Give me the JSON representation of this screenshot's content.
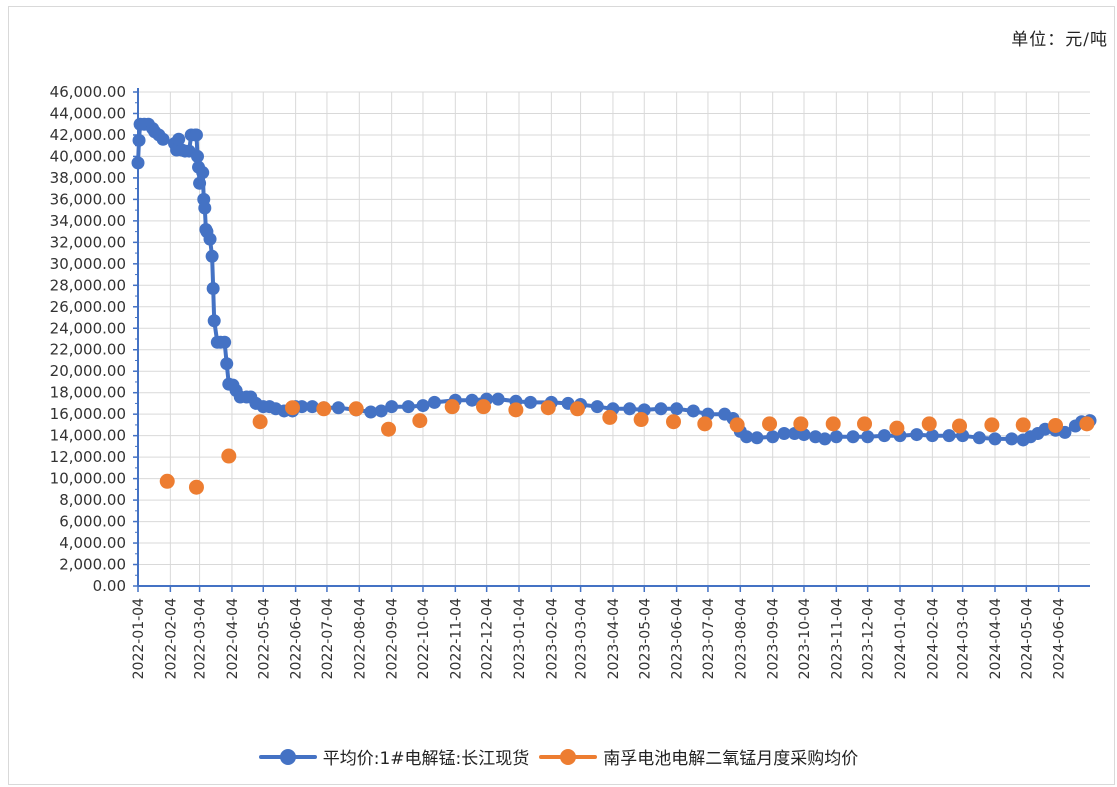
{
  "unit_label": "单位：元/吨",
  "colors": {
    "series1": "#4472c4",
    "series2": "#ed7d31",
    "grid": "#d9d9d9",
    "axis": "#4472c4"
  },
  "legend": [
    {
      "label": "平均价:1#电解锰:长江现货",
      "color": "#4472c4"
    },
    {
      "label": "南孚电池电解二氧锰月度采购均价",
      "color": "#ed7d31"
    }
  ],
  "chart_data": {
    "type": "line",
    "y_tick_labels": [
      "0.00",
      "2,000.00",
      "4,000.00",
      "6,000.00",
      "8,000.00",
      "10,000.00",
      "12,000.00",
      "14,000.00",
      "16,000.00",
      "18,000.00",
      "20,000.00",
      "22,000.00",
      "24,000.00",
      "26,000.00",
      "28,000.00",
      "30,000.00",
      "32,000.00",
      "34,000.00",
      "36,000.00",
      "38,000.00",
      "40,000.00",
      "42,000.00",
      "44,000.00",
      "46,000.00"
    ],
    "x_tick_labels": [
      "2022-01-04",
      "2022-02-04",
      "2022-03-04",
      "2022-04-04",
      "2022-05-04",
      "2022-06-04",
      "2022-07-04",
      "2022-08-04",
      "2022-09-04",
      "2022-10-04",
      "2022-11-04",
      "2022-12-04",
      "2023-01-04",
      "2023-02-04",
      "2023-03-04",
      "2023-04-04",
      "2023-05-04",
      "2023-06-04",
      "2023-07-04",
      "2023-08-04",
      "2023-09-04",
      "2023-10-04",
      "2023-11-04",
      "2023-12-04",
      "2024-01-04",
      "2024-02-04",
      "2024-03-04",
      "2024-04-04",
      "2024-05-04",
      "2024-06-04"
    ],
    "ylim": [
      0,
      46000
    ],
    "xlim": [
      "2022-01-04",
      "2024-07-04"
    ],
    "grid": true,
    "legend_position": "bottom",
    "series": [
      {
        "name": "平均价:1#电解锰:长江现货",
        "type": "line",
        "points": [
          [
            "2022-01-04",
            39400
          ],
          [
            "2022-01-05",
            41500
          ],
          [
            "2022-01-06",
            43000
          ],
          [
            "2022-01-10",
            43000
          ],
          [
            "2022-01-14",
            43000
          ],
          [
            "2022-01-18",
            42600
          ],
          [
            "2022-01-20",
            42300
          ],
          [
            "2022-01-24",
            42000
          ],
          [
            "2022-01-28",
            41600
          ],
          [
            "2022-02-08",
            41200
          ],
          [
            "2022-02-10",
            40600
          ],
          [
            "2022-02-12",
            41600
          ],
          [
            "2022-02-15",
            40600
          ],
          [
            "2022-02-18",
            40500
          ],
          [
            "2022-02-22",
            40500
          ],
          [
            "2022-02-24",
            42000
          ],
          [
            "2022-02-28",
            42000
          ],
          [
            "2022-03-01",
            42000
          ],
          [
            "2022-03-02",
            40000
          ],
          [
            "2022-03-03",
            39000
          ],
          [
            "2022-03-04",
            37500
          ],
          [
            "2022-03-07",
            38500
          ],
          [
            "2022-03-08",
            36000
          ],
          [
            "2022-03-09",
            35200
          ],
          [
            "2022-03-10",
            33200
          ],
          [
            "2022-03-11",
            33000
          ],
          [
            "2022-03-14",
            32300
          ],
          [
            "2022-03-16",
            30700
          ],
          [
            "2022-03-17",
            27700
          ],
          [
            "2022-03-18",
            24700
          ],
          [
            "2022-03-21",
            22700
          ],
          [
            "2022-03-24",
            22700
          ],
          [
            "2022-03-28",
            22700
          ],
          [
            "2022-03-30",
            20700
          ],
          [
            "2022-04-01",
            18800
          ],
          [
            "2022-04-05",
            18700
          ],
          [
            "2022-04-08",
            18200
          ],
          [
            "2022-04-12",
            17600
          ],
          [
            "2022-04-18",
            17600
          ],
          [
            "2022-04-22",
            17600
          ],
          [
            "2022-04-27",
            17000
          ],
          [
            "2022-05-04",
            16700
          ],
          [
            "2022-05-10",
            16700
          ],
          [
            "2022-05-16",
            16500
          ],
          [
            "2022-05-24",
            16300
          ],
          [
            "2022-06-01",
            16300
          ],
          [
            "2022-06-04",
            16700
          ],
          [
            "2022-06-10",
            16700
          ],
          [
            "2022-06-20",
            16700
          ],
          [
            "2022-07-01",
            16600
          ],
          [
            "2022-07-15",
            16600
          ],
          [
            "2022-08-01",
            16400
          ],
          [
            "2022-08-15",
            16200
          ],
          [
            "2022-08-25",
            16300
          ],
          [
            "2022-09-04",
            16700
          ],
          [
            "2022-09-20",
            16700
          ],
          [
            "2022-10-04",
            16800
          ],
          [
            "2022-10-15",
            17100
          ],
          [
            "2022-11-04",
            17300
          ],
          [
            "2022-11-20",
            17300
          ],
          [
            "2022-12-04",
            17400
          ],
          [
            "2022-12-15",
            17400
          ],
          [
            "2023-01-01",
            17200
          ],
          [
            "2023-01-15",
            17100
          ],
          [
            "2023-02-04",
            17100
          ],
          [
            "2023-02-20",
            17000
          ],
          [
            "2023-03-04",
            16900
          ],
          [
            "2023-03-20",
            16700
          ],
          [
            "2023-04-04",
            16500
          ],
          [
            "2023-04-20",
            16500
          ],
          [
            "2023-05-04",
            16400
          ],
          [
            "2023-05-20",
            16500
          ],
          [
            "2023-06-04",
            16500
          ],
          [
            "2023-06-20",
            16300
          ],
          [
            "2023-07-04",
            16000
          ],
          [
            "2023-07-20",
            16000
          ],
          [
            "2023-07-28",
            15600
          ],
          [
            "2023-08-04",
            14400
          ],
          [
            "2023-08-10",
            13900
          ],
          [
            "2023-08-20",
            13800
          ],
          [
            "2023-09-04",
            13900
          ],
          [
            "2023-09-15",
            14200
          ],
          [
            "2023-09-25",
            14200
          ],
          [
            "2023-10-04",
            14100
          ],
          [
            "2023-10-15",
            13900
          ],
          [
            "2023-10-24",
            13700
          ],
          [
            "2023-11-04",
            13900
          ],
          [
            "2023-11-20",
            13900
          ],
          [
            "2023-12-04",
            13900
          ],
          [
            "2023-12-20",
            14000
          ],
          [
            "2024-01-04",
            14000
          ],
          [
            "2024-01-20",
            14100
          ],
          [
            "2024-02-04",
            14000
          ],
          [
            "2024-02-20",
            14000
          ],
          [
            "2024-03-04",
            14000
          ],
          [
            "2024-03-20",
            13800
          ],
          [
            "2024-04-04",
            13700
          ],
          [
            "2024-04-20",
            13700
          ],
          [
            "2024-05-01",
            13600
          ],
          [
            "2024-05-08",
            13900
          ],
          [
            "2024-05-15",
            14200
          ],
          [
            "2024-05-22",
            14600
          ],
          [
            "2024-06-01",
            14500
          ],
          [
            "2024-06-10",
            14300
          ],
          [
            "2024-06-20",
            14900
          ],
          [
            "2024-06-26",
            15300
          ],
          [
            "2024-07-04",
            15400
          ]
        ]
      },
      {
        "name": "南孚电池电解二氧锰月度采购均价",
        "type": "scatter",
        "points": [
          [
            "2022-02-01",
            9750
          ],
          [
            "2022-03-01",
            9200
          ],
          [
            "2022-04-01",
            12100
          ],
          [
            "2022-05-01",
            15300
          ],
          [
            "2022-06-01",
            16600
          ],
          [
            "2022-07-01",
            16500
          ],
          [
            "2022-08-01",
            16500
          ],
          [
            "2022-09-01",
            14600
          ],
          [
            "2022-10-01",
            15400
          ],
          [
            "2022-11-01",
            16700
          ],
          [
            "2022-12-01",
            16700
          ],
          [
            "2023-01-01",
            16400
          ],
          [
            "2023-02-01",
            16600
          ],
          [
            "2023-03-01",
            16500
          ],
          [
            "2023-04-01",
            15700
          ],
          [
            "2023-05-01",
            15500
          ],
          [
            "2023-06-01",
            15300
          ],
          [
            "2023-07-01",
            15100
          ],
          [
            "2023-08-01",
            15000
          ],
          [
            "2023-09-01",
            15100
          ],
          [
            "2023-10-01",
            15100
          ],
          [
            "2023-11-01",
            15100
          ],
          [
            "2023-12-01",
            15100
          ],
          [
            "2024-01-01",
            14700
          ],
          [
            "2024-02-01",
            15100
          ],
          [
            "2024-03-01",
            14900
          ],
          [
            "2024-04-01",
            15000
          ],
          [
            "2024-05-01",
            15000
          ],
          [
            "2024-06-01",
            14950
          ],
          [
            "2024-07-01",
            15100
          ]
        ]
      }
    ]
  }
}
